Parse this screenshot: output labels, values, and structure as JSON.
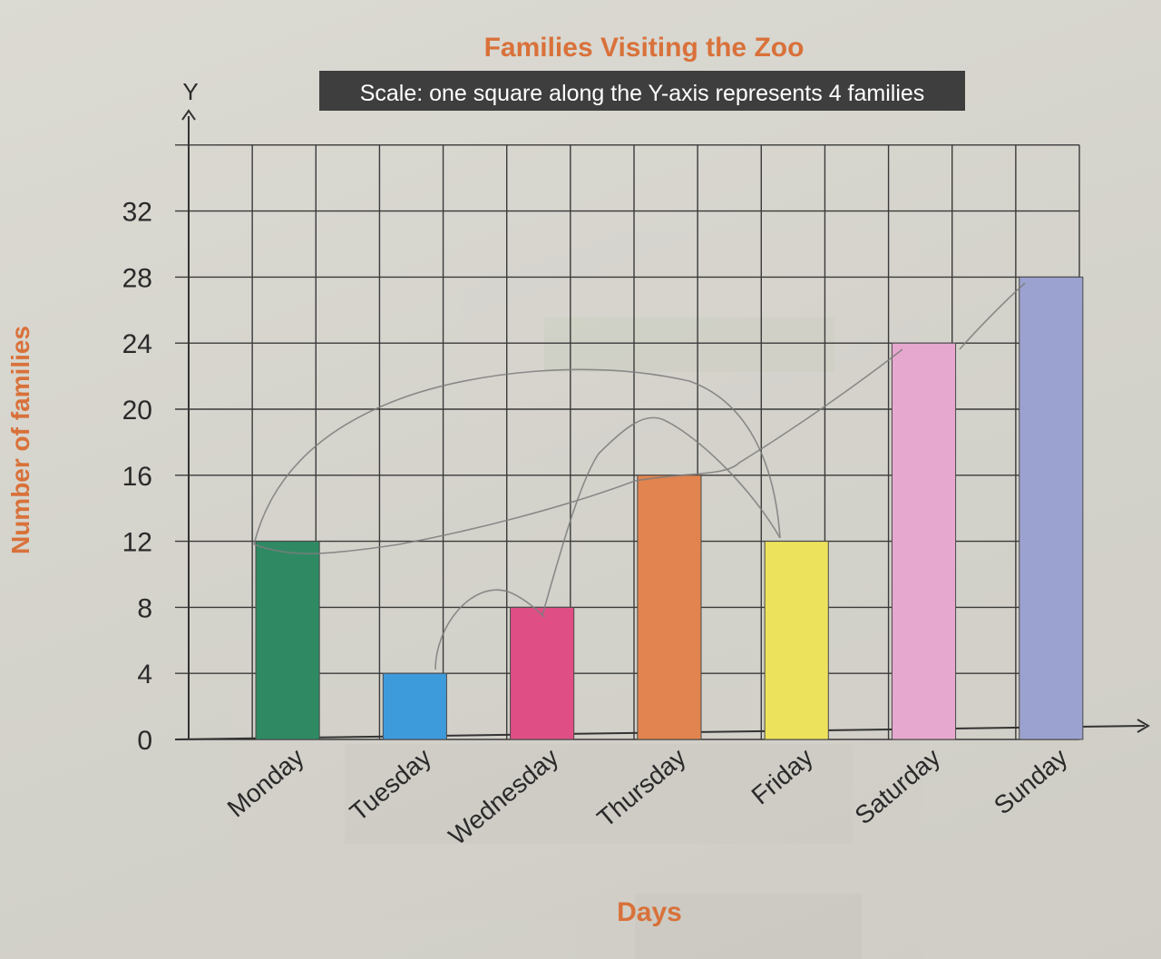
{
  "chart_data": {
    "type": "bar",
    "title": "Families Visiting the Zoo",
    "subtitle": "Scale: one square along the Y-axis represents 4 families",
    "xlabel": "Days",
    "ylabel": "Number of families",
    "y_axis_letter": "Y",
    "categories": [
      "Monday",
      "Tuesday",
      "Wednesday",
      "Thursday",
      "Friday",
      "Saturday",
      "Sunday"
    ],
    "values": [
      12,
      4,
      8,
      16,
      12,
      24,
      28
    ],
    "bar_colors": [
      "#2f8a64",
      "#3d9bdc",
      "#df4f86",
      "#e2844f",
      "#ede25b",
      "#e7a8cf",
      "#9ba2cf"
    ],
    "ylim": [
      0,
      36
    ],
    "yticks": [
      "0",
      "4",
      "8",
      "12",
      "16",
      "20",
      "24",
      "28",
      "32"
    ],
    "grid": true
  }
}
